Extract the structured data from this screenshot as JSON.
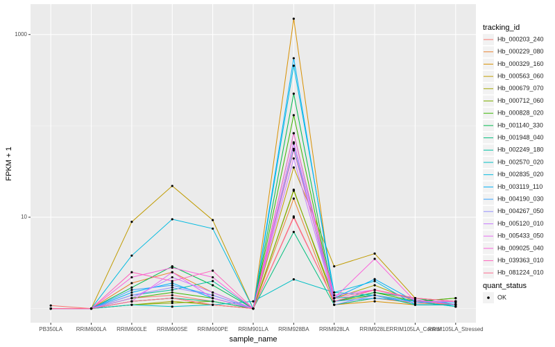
{
  "chart_data": {
    "type": "line",
    "x_label": "sample_name",
    "y_label": "FPKM + 1",
    "categories": [
      "PB350LA",
      "RRIM600LA",
      "RRIM600LE",
      "RRIM600SE",
      "RRIM600PE",
      "RRIM901LA",
      "RRIM928BA",
      "RRIM928LA",
      "RRIM928LE",
      "RRIM105LA_Control",
      "RRIM105LA_Stressed"
    ],
    "log_y": true,
    "ylim": [
      0.7,
      2150
    ],
    "yticks": [
      10,
      1000
    ],
    "grid": true,
    "legend": {
      "title": "tracking_id",
      "position": "right"
    },
    "point_legend": {
      "title": "quant_status",
      "labels": [
        "OK"
      ]
    },
    "series": [
      {
        "name": "Hb_000203_240",
        "color": "#F8766D",
        "values": [
          1.08,
          1,
          1.3,
          1.4,
          1.2,
          1,
          10.2,
          1.2,
          1.5,
          1.2,
          1.1
        ]
      },
      {
        "name": "Hb_000229_080",
        "color": "#EA8331",
        "values": [
          1,
          1,
          1.9,
          2.5,
          1.5,
          1,
          16,
          1.1,
          1.3,
          1.15,
          1.1
        ]
      },
      {
        "name": "Hb_000329_160",
        "color": "#D89000",
        "values": [
          1,
          1,
          1.2,
          1.3,
          1.1,
          1,
          1490,
          1.1,
          1.2,
          1.1,
          1.1
        ]
      },
      {
        "name": "Hb_000563_060",
        "color": "#C09B00",
        "values": [
          1,
          1,
          8.9,
          22,
          9.3,
          1,
          35,
          2.9,
          4.0,
          1.3,
          1.2
        ]
      },
      {
        "name": "Hb_000679_070",
        "color": "#A3A500",
        "values": [
          1,
          1,
          1.1,
          1.2,
          1.1,
          1,
          19.5,
          1.3,
          1.8,
          1.2,
          1.3
        ]
      },
      {
        "name": "Hb_000712_060",
        "color": "#7CAE00",
        "values": [
          1,
          1,
          1.1,
          1.15,
          1.2,
          1,
          20,
          1.2,
          1.4,
          1.1,
          1.1
        ]
      },
      {
        "name": "Hb_000828_020",
        "color": "#39B600",
        "values": [
          1,
          1,
          1.3,
          1.5,
          1.3,
          1,
          131,
          1.2,
          1.5,
          1.2,
          1.3
        ]
      },
      {
        "name": "Hb_001140_330",
        "color": "#00BB4E",
        "values": [
          1,
          1,
          1.7,
          2.9,
          1.8,
          1,
          225,
          1.2,
          1.5,
          1.3,
          1.1
        ]
      },
      {
        "name": "Hb_001948_040",
        "color": "#00BF7D",
        "values": [
          1,
          1,
          1.2,
          1.3,
          1.2,
          1,
          6.9,
          1.1,
          1.3,
          1.2,
          1.05
        ]
      },
      {
        "name": "Hb_002249_180",
        "color": "#00C1A3",
        "values": [
          1,
          1,
          1.4,
          1.6,
          2.0,
          1,
          56,
          1.3,
          1.4,
          1.1,
          1.1
        ]
      },
      {
        "name": "Hb_002570_020",
        "color": "#00BFC4",
        "values": [
          1,
          1,
          1.1,
          1.05,
          1.1,
          1.2,
          2.09,
          1.5,
          1.4,
          1.2,
          1.05
        ]
      },
      {
        "name": "Hb_002835_020",
        "color": "#00BAE0",
        "values": [
          1,
          1,
          3.8,
          9.5,
          7.5,
          1,
          455,
          1.5,
          2.0,
          1.1,
          1.1
        ]
      },
      {
        "name": "Hb_003119_110",
        "color": "#00B0F6",
        "values": [
          1,
          1,
          1.5,
          1.9,
          1.3,
          1,
          550,
          1.3,
          2.1,
          1.2,
          1.2
        ]
      },
      {
        "name": "Hb_004190_030",
        "color": "#35A2FF",
        "values": [
          1,
          1,
          1.6,
          1.8,
          1.4,
          1,
          83,
          1.2,
          1.3,
          1.2,
          1.15
        ]
      },
      {
        "name": "Hb_004267_050",
        "color": "#9590FF",
        "values": [
          1,
          1,
          1.4,
          1.7,
          1.4,
          1,
          64,
          1.1,
          1.4,
          1.15,
          1.2
        ]
      },
      {
        "name": "Hb_005120_010",
        "color": "#C77CFF",
        "values": [
          1,
          1,
          1.3,
          2.2,
          1.5,
          1,
          44,
          1.2,
          1.6,
          1.3,
          1.2
        ]
      },
      {
        "name": "Hb_005433_050",
        "color": "#E76BF3",
        "values": [
          1,
          1,
          1.2,
          2.5,
          1.3,
          1,
          66,
          1.4,
          1.6,
          1.25,
          1.1
        ]
      },
      {
        "name": "Hb_009025_040",
        "color": "#FA62DB",
        "values": [
          1,
          1,
          2.2,
          2.8,
          2.2,
          1,
          54,
          1.3,
          3.5,
          1.2,
          1.2
        ]
      },
      {
        "name": "Hb_039363_010",
        "color": "#FF62BC",
        "values": [
          1,
          1,
          2.5,
          2.0,
          2.6,
          1,
          83,
          1.3,
          1.6,
          1.3,
          1.2
        ]
      },
      {
        "name": "Hb_081224_010",
        "color": "#FF6C91",
        "values": [
          1,
          1,
          1.2,
          1.3,
          1.1,
          1,
          9.9,
          1.2,
          1.6,
          1.3,
          1.2
        ]
      }
    ]
  }
}
